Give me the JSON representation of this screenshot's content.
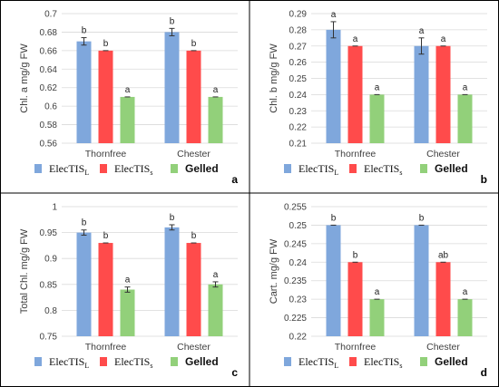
{
  "colors": {
    "ElecTIS_L": "#7fa7dc",
    "ElecTIS_S": "#ff4b4b",
    "Gelled": "#92d07a",
    "grid": "#d9d9d9",
    "frame": "#000000",
    "error_bar": "#333333"
  },
  "legend": {
    "placement": "bottom",
    "items": [
      {
        "key": "ElecTIS_L",
        "base": "ElecTIS",
        "sub": "L",
        "style": "serif"
      },
      {
        "key": "ElecTIS_S",
        "base": "ElecTIS",
        "sub": "s",
        "style": "serif"
      },
      {
        "key": "Gelled",
        "base": "Gelled",
        "sub": "",
        "style": "bold"
      }
    ]
  },
  "chart_data": [
    {
      "panel": "a",
      "type": "bar",
      "ylabel": "Chl. a mg/g FW",
      "ylim": [
        0.56,
        0.7
      ],
      "yticks": [
        "0.56",
        "0.58",
        "0.6",
        "0.62",
        "0.64",
        "0.66",
        "0.68",
        "0.7"
      ],
      "grid": true,
      "categories": [
        "Thornfree",
        "Chester"
      ],
      "series": [
        {
          "name": "ElecTIS_L",
          "values": [
            0.67,
            0.68
          ],
          "errors": [
            0.004,
            0.004
          ],
          "letters": [
            "b",
            "b"
          ]
        },
        {
          "name": "ElecTIS_S",
          "values": [
            0.66,
            0.66
          ],
          "errors": [
            0,
            0
          ],
          "letters": [
            "b",
            "b"
          ]
        },
        {
          "name": "Gelled",
          "values": [
            0.61,
            0.61
          ],
          "errors": [
            0,
            0
          ],
          "letters": [
            "a",
            "a"
          ]
        }
      ]
    },
    {
      "panel": "b",
      "type": "bar",
      "ylabel": "Chl. b mg/g FW",
      "ylim": [
        0.21,
        0.29
      ],
      "yticks": [
        "0.21",
        "0.22",
        "0.23",
        "0.24",
        "0.25",
        "0.26",
        "0.27",
        "0.28",
        "0.29"
      ],
      "grid": true,
      "categories": [
        "Thornfree",
        "Chester"
      ],
      "series": [
        {
          "name": "ElecTIS_L",
          "values": [
            0.28,
            0.27
          ],
          "errors": [
            0.005,
            0.005
          ],
          "letters": [
            "a",
            "a"
          ]
        },
        {
          "name": "ElecTIS_S",
          "values": [
            0.27,
            0.27
          ],
          "errors": [
            0,
            0
          ],
          "letters": [
            "a",
            "a"
          ]
        },
        {
          "name": "Gelled",
          "values": [
            0.24,
            0.24
          ],
          "errors": [
            0,
            0
          ],
          "letters": [
            "a",
            "a"
          ]
        }
      ]
    },
    {
      "panel": "c",
      "type": "bar",
      "ylabel": "Total Chl. mg/g FW",
      "ylim": [
        0.75,
        1
      ],
      "yticks": [
        "0.75",
        "0.8",
        "0.85",
        "0.9",
        "0.95",
        "1"
      ],
      "grid": true,
      "categories": [
        "Thornfree",
        "Chester"
      ],
      "series": [
        {
          "name": "ElecTIS_L",
          "values": [
            0.95,
            0.96
          ],
          "errors": [
            0.005,
            0.005
          ],
          "letters": [
            "b",
            "b"
          ]
        },
        {
          "name": "ElecTIS_S",
          "values": [
            0.93,
            0.93
          ],
          "errors": [
            0,
            0
          ],
          "letters": [
            "b",
            "b"
          ]
        },
        {
          "name": "Gelled",
          "values": [
            0.84,
            0.85
          ],
          "errors": [
            0.005,
            0.005
          ],
          "letters": [
            "a",
            "a"
          ]
        }
      ]
    },
    {
      "panel": "d",
      "type": "bar",
      "ylabel": "Cart. mg/g FW",
      "ylim": [
        0.22,
        0.255
      ],
      "yticks": [
        "0.22",
        "0.225",
        "0.23",
        "0.235",
        "0.24",
        "0.245",
        "0.25",
        "0.255"
      ],
      "grid": true,
      "categories": [
        "Thornfree",
        "Chester"
      ],
      "series": [
        {
          "name": "ElecTIS_L",
          "values": [
            0.25,
            0.25
          ],
          "errors": [
            0,
            0
          ],
          "letters": [
            "b",
            "b"
          ]
        },
        {
          "name": "ElecTIS_S",
          "values": [
            0.24,
            0.24
          ],
          "errors": [
            0,
            0
          ],
          "letters": [
            "b",
            "ab"
          ]
        },
        {
          "name": "Gelled",
          "values": [
            0.23,
            0.23
          ],
          "errors": [
            0,
            0
          ],
          "letters": [
            "a",
            "a"
          ]
        }
      ]
    }
  ]
}
